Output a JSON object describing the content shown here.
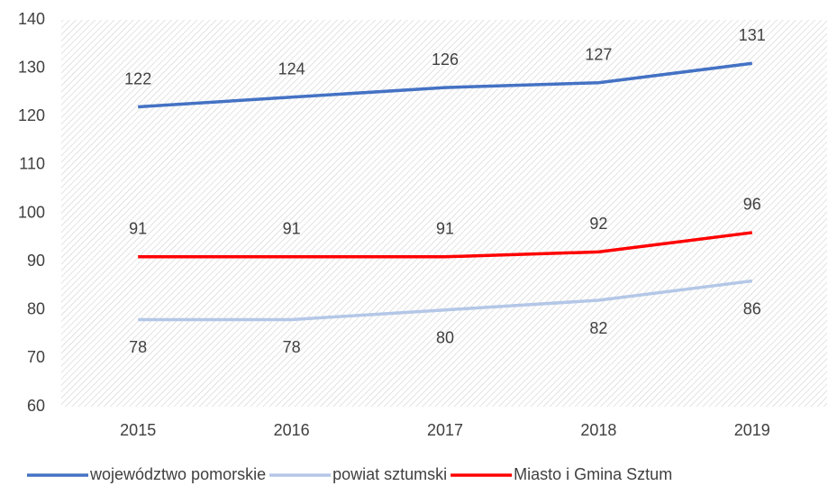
{
  "chart_data": {
    "type": "line",
    "categories": [
      "2015",
      "2016",
      "2017",
      "2018",
      "2019"
    ],
    "series": [
      {
        "name": "województwo pomorskie",
        "color": "#4472c4",
        "values": [
          122,
          124,
          126,
          127,
          131
        ],
        "label_position": "above"
      },
      {
        "name": "powiat sztumski",
        "color": "#b4c7e7",
        "values": [
          78,
          78,
          80,
          82,
          86
        ],
        "label_position": "below"
      },
      {
        "name": "Miasto i Gmina Sztum",
        "color": "#ff0000",
        "values": [
          91,
          91,
          91,
          92,
          96
        ],
        "label_position": "above"
      }
    ],
    "ylim": [
      60,
      140
    ],
    "yticks": [
      60,
      70,
      80,
      90,
      100,
      110,
      120,
      130,
      140
    ],
    "legend": "bottom"
  }
}
